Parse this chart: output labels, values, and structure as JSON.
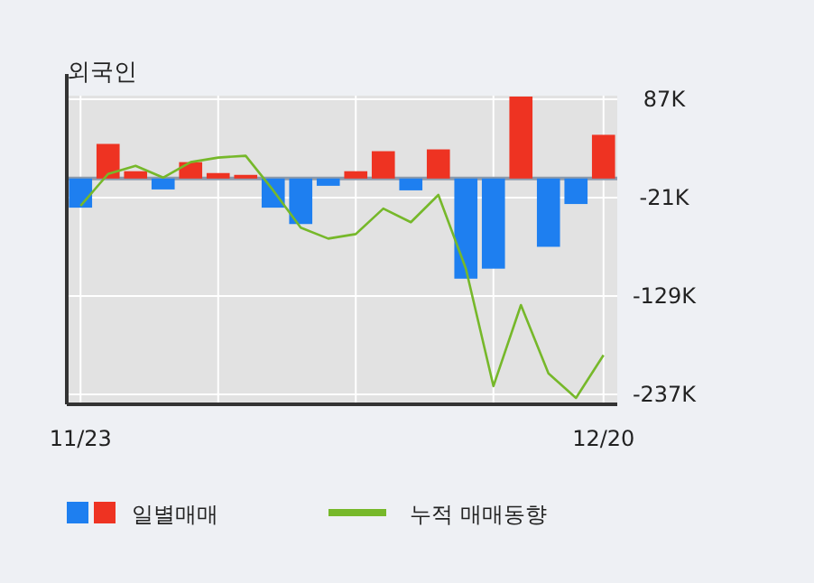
{
  "chart_data": {
    "type": "bar",
    "title": "외국인",
    "categories": [
      "11/23",
      null,
      null,
      null,
      null,
      null,
      null,
      null,
      null,
      null,
      null,
      null,
      null,
      null,
      null,
      null,
      null,
      null,
      null,
      "12/20"
    ],
    "series": [
      {
        "name": "일별매매",
        "values": [
          -32,
          38,
          8,
          -12,
          18,
          6,
          4,
          -32,
          -50,
          -8,
          8,
          30,
          -13,
          32,
          -110,
          -99,
          90,
          -75,
          -28,
          48
        ],
        "colors": [
          "#1e7ff0",
          "#ee3322",
          "#ee3322",
          "#1e7ff0",
          "#ee3322",
          "#ee3322",
          "#ee3322",
          "#1e7ff0",
          "#1e7ff0",
          "#1e7ff0",
          "#ee3322",
          "#ee3322",
          "#1e7ff0",
          "#ee3322",
          "#1e7ff0",
          "#1e7ff0",
          "#ee3322",
          "#1e7ff0",
          "#1e7ff0",
          "#ee3322"
        ]
      },
      {
        "name": "누적 매매동향",
        "type": "line",
        "color": "#76b82a",
        "values": [
          -30,
          5,
          14,
          1,
          18,
          23,
          25,
          -13,
          -54,
          -66,
          -61,
          -33,
          -48,
          -18,
          -99,
          -228,
          -139,
          -214,
          -241,
          -194
        ]
      }
    ],
    "ylim": [
      -248,
      91
    ],
    "yticks": [
      {
        "value": 87,
        "label": "87K"
      },
      {
        "value": -21,
        "label": "-21K"
      },
      {
        "value": -129,
        "label": "-129K"
      },
      {
        "value": -237,
        "label": "-237K"
      }
    ],
    "ref_lines": [
      {
        "axis": "y",
        "value": 0,
        "color": "#8c9aab"
      }
    ],
    "grid": true,
    "legend": "bottom"
  }
}
